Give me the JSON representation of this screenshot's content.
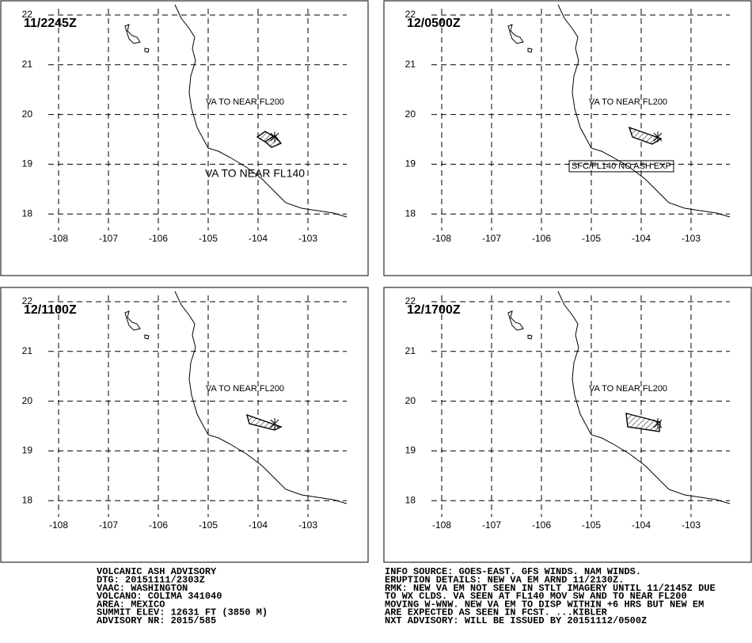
{
  "panels": [
    {
      "time": "11/2245Z",
      "labels": [
        "VA TO NEAR FL200",
        "VA TO NEAR FL140"
      ]
    },
    {
      "time": "12/0500Z",
      "labels": [
        "VA TO NEAR FL200",
        "SFC/FL140 NO ASH EXP"
      ]
    },
    {
      "time": "12/1100Z",
      "labels": [
        "VA TO NEAR FL200"
      ]
    },
    {
      "time": "12/1700Z",
      "labels": [
        "VA TO NEAR FL200"
      ]
    }
  ],
  "lon_ticks": [
    -108,
    -107,
    -106,
    -105,
    -104,
    -103
  ],
  "lat_ticks": [
    22,
    21,
    20,
    19,
    18
  ],
  "advisory_left": [
    "VOLCANIC ASH ADVISORY",
    "DTG: 20151111/2303Z",
    "VAAC: WASHINGTON",
    "VOLCANO: COLIMA 341040",
    "AREA: MEXICO",
    "SUMMIT ELEV: 12631 FT (3850 M)",
    "ADVISORY NR: 2015/585"
  ],
  "advisory_right": [
    "INFO SOURCE: GOES-EAST. GFS WINDS. NAM WINDS.",
    "ERUPTION DETAILS: NEW VA EM ARND 11/2130Z.",
    "RMK: NEW VA EM NOT SEEN IN STLT IMAGERY UNTIL 11/2145Z DUE",
    "TO WX CLDS. VA SEEN AT FL140 MOV SW AND TO NEAR FL200",
    "MOVING W-WNW. NEW VA EM TO DISP WITHIN +6 HRS BUT NEW EM",
    "ARE EXPECTED AS SEEN IN FCST. ...KIBLER",
    "NXT ADVISORY: WILL BE ISSUED BY 20151112/0500Z"
  ]
}
